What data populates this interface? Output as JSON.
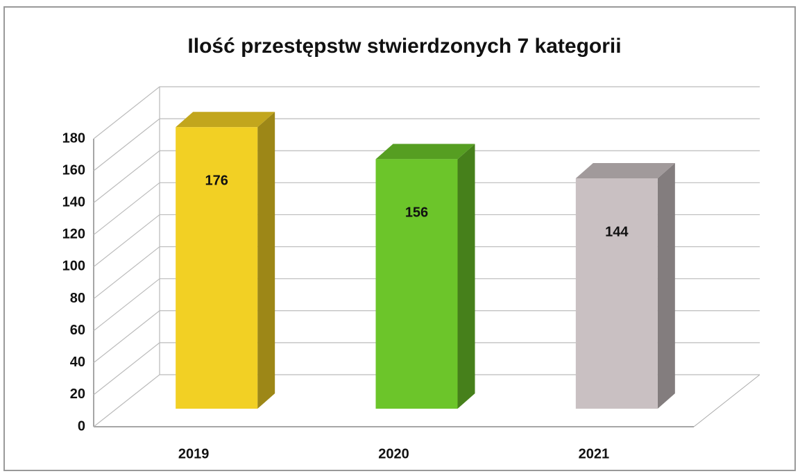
{
  "chart_data": {
    "type": "bar3d",
    "title": "Ilość przestępstw stwierdzonych 7 kategorii",
    "categories": [
      "2019",
      "2020",
      "2021"
    ],
    "values": [
      176,
      156,
      144
    ],
    "colors": [
      "#f2d024",
      "#6cc52a",
      "#c9c0c2"
    ],
    "ylim": [
      0,
      180
    ],
    "yticks": [
      0,
      20,
      40,
      60,
      80,
      100,
      120,
      140,
      160,
      180
    ],
    "grid": true
  }
}
